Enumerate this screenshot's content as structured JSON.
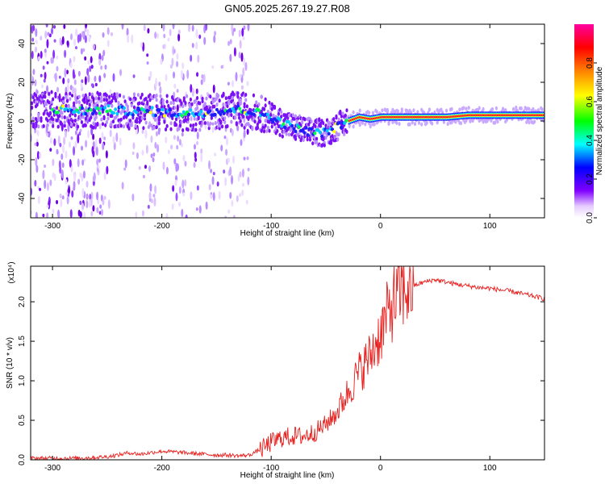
{
  "title": "GN05.2025.267.19.27.R08",
  "colors": {
    "snr_line": "#e8201e",
    "spectrogram_colormap": [
      "#ffffff",
      "#e6ccff",
      "#8000ff",
      "#0000ff",
      "#00ffff",
      "#00ff00",
      "#ffff00",
      "#ff8000",
      "#ff0000",
      "#ff00a0"
    ]
  },
  "chart_data": [
    {
      "type": "heatmap",
      "name": "spectrogram",
      "xlabel": "Height of straight line (km)",
      "ylabel": "Frequency (Hz)",
      "xlim": [
        -320,
        150
      ],
      "ylim": [
        -50,
        50
      ],
      "xticks": [
        -300,
        -200,
        -100,
        0,
        100
      ],
      "yticks": [
        -40,
        -20,
        0,
        20,
        40
      ],
      "colorbar": {
        "label": "Normalized spectral amplitude",
        "range": [
          0,
          1
        ],
        "ticks": [
          "0.0",
          "0.2",
          "0.4",
          "0.6",
          "0.8"
        ]
      },
      "ridge": {
        "x": [
          -290,
          -270,
          -250,
          -230,
          -210,
          -190,
          -170,
          -150,
          -130,
          -110,
          -100,
          -90,
          -80,
          -70,
          -60,
          -50,
          -40,
          -30,
          -20,
          -10,
          0,
          20,
          40,
          60,
          80,
          100,
          120,
          150
        ],
        "frequency": [
          6,
          5,
          6,
          5,
          5,
          4,
          4,
          5,
          6,
          4,
          2,
          -1,
          -3,
          -5,
          -6,
          -6,
          -3,
          0,
          2,
          1,
          2,
          2,
          2,
          2,
          3,
          3,
          3,
          3
        ]
      }
    },
    {
      "type": "line",
      "name": "snr",
      "xlabel": "Height of straight line (km)",
      "ylabel": "SNR (10 * v/v)",
      "yscale_label": "(x10⁴)",
      "xlim": [
        -320,
        150
      ],
      "ylim": [
        0,
        2.45
      ],
      "xticks": [
        -300,
        -200,
        -100,
        0,
        100
      ],
      "yticks": [
        0.0,
        0.5,
        1.0,
        1.5,
        2.0
      ],
      "ytick_labels": [
        "0.0",
        "0.5",
        "1.0",
        "1.5",
        "2.0"
      ],
      "series": [
        {
          "name": "SNR",
          "x": [
            -320,
            -300,
            -280,
            -260,
            -250,
            -240,
            -230,
            -220,
            -210,
            -200,
            -190,
            -180,
            -170,
            -160,
            -150,
            -140,
            -130,
            -120,
            -110,
            -100,
            -90,
            -80,
            -70,
            -60,
            -50,
            -40,
            -30,
            -20,
            -10,
            0,
            10,
            20,
            30,
            40,
            50,
            60,
            70,
            80,
            90,
            100,
            110,
            120,
            130,
            140,
            150
          ],
          "values": [
            0.01,
            0.01,
            0.01,
            0.02,
            0.03,
            0.05,
            0.08,
            0.06,
            0.08,
            0.1,
            0.09,
            0.08,
            0.07,
            0.06,
            0.05,
            0.05,
            0.04,
            0.05,
            0.12,
            0.22,
            0.28,
            0.3,
            0.3,
            0.35,
            0.45,
            0.6,
            0.85,
            1.1,
            1.3,
            1.6,
            1.95,
            2.15,
            2.2,
            2.25,
            2.28,
            2.25,
            2.22,
            2.2,
            2.18,
            2.17,
            2.15,
            2.13,
            2.1,
            2.07,
            2.04
          ]
        }
      ]
    }
  ]
}
